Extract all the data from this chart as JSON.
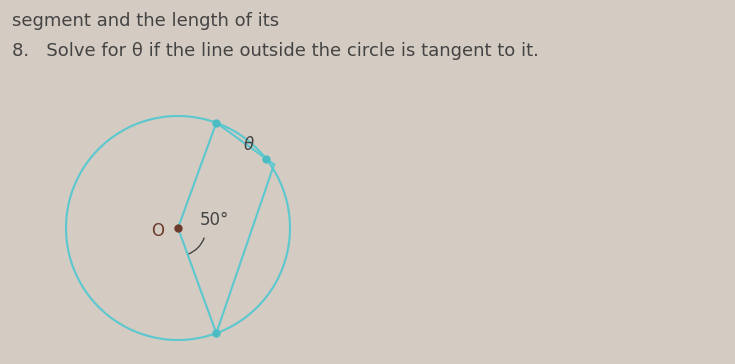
{
  "title_line1": "segment and the length of its",
  "title_line2": "8.   Solve for θ if the line outside the circle is tangent to it.",
  "circle_color": "#5BC8D0",
  "line_color": "#5BC8D0",
  "dot_color": "#4BBCC4",
  "center_dot_color": "#6B3A2A",
  "text_color": "#444444",
  "bg_color": "#D4CBC2",
  "label_O": "O",
  "label_angle": "50°",
  "label_theta": "θ",
  "font_size_label": 12,
  "font_size_title": 13
}
